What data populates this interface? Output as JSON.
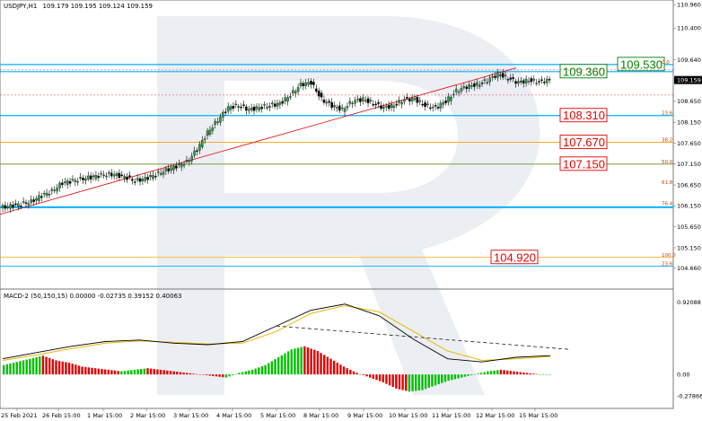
{
  "header": {
    "symbol": "USDJPY,H1",
    "ohlc": "109.179 109.195 109.124 109.159",
    "macd_label": "MACD-2 (50,150,15) 0.00000 -0.02735 0.39152 0.40063"
  },
  "chart_data": [
    {
      "type": "candlestick",
      "title": "USDJPY,H1",
      "ylim": [
        104.25,
        110.9
      ],
      "y_ticks": [
        "110.960",
        "110.400",
        "109.640",
        "109.159",
        "108.650",
        "108.150",
        "107.650",
        "107.150",
        "106.650",
        "106.150",
        "105.650",
        "105.150",
        "104.660"
      ],
      "x_ticks": [
        "25 Feb 2021",
        "26 Feb 15:00",
        "1 Mar 15:00",
        "2 Mar 15:00",
        "3 Mar 15:00",
        "4 Mar 15:00",
        "5 Mar 15:00",
        "8 Mar 15:00",
        "9 Mar 15:00",
        "10 Mar 15:00",
        "11 Mar 15:00",
        "12 Mar 15:00",
        "15 Mar 15:00"
      ],
      "price_path": [
        [
          0,
          106.1
        ],
        [
          4,
          106.15
        ],
        [
          8,
          106.2
        ],
        [
          12,
          106.25
        ],
        [
          16,
          106.4
        ],
        [
          20,
          106.5
        ],
        [
          24,
          106.7
        ],
        [
          28,
          106.75
        ],
        [
          32,
          106.8
        ],
        [
          36,
          106.85
        ],
        [
          40,
          106.9
        ],
        [
          44,
          106.9
        ],
        [
          48,
          106.85
        ],
        [
          52,
          106.75
        ],
        [
          56,
          106.8
        ],
        [
          60,
          106.9
        ],
        [
          64,
          107.0
        ],
        [
          68,
          107.1
        ],
        [
          72,
          107.2
        ],
        [
          76,
          107.5
        ],
        [
          80,
          107.9
        ],
        [
          84,
          108.2
        ],
        [
          88,
          108.5
        ],
        [
          92,
          108.55
        ],
        [
          96,
          108.45
        ],
        [
          100,
          108.5
        ],
        [
          104,
          108.55
        ],
        [
          108,
          108.6
        ],
        [
          112,
          108.8
        ],
        [
          116,
          109.05
        ],
        [
          120,
          109.1
        ],
        [
          124,
          108.7
        ],
        [
          128,
          108.55
        ],
        [
          132,
          108.45
        ],
        [
          136,
          108.65
        ],
        [
          140,
          108.7
        ],
        [
          144,
          108.6
        ],
        [
          148,
          108.5
        ],
        [
          152,
          108.55
        ],
        [
          156,
          108.7
        ],
        [
          160,
          108.7
        ],
        [
          164,
          108.55
        ],
        [
          168,
          108.5
        ],
        [
          172,
          108.65
        ],
        [
          176,
          108.9
        ],
        [
          180,
          109.0
        ],
        [
          184,
          109.05
        ],
        [
          188,
          109.15
        ],
        [
          192,
          109.3
        ],
        [
          196,
          109.2
        ],
        [
          200,
          109.1
        ],
        [
          204,
          109.15
        ],
        [
          208,
          109.12
        ],
        [
          212,
          109.16
        ]
      ],
      "current_price": "109.159",
      "levels": [
        {
          "label": "109.530",
          "price": 109.53,
          "color": "#00b0ff",
          "text_color": "#008000"
        },
        {
          "label": "109.360",
          "price": 109.36,
          "color": "#00b0ff",
          "text_color": "#008000"
        },
        {
          "label": "108.310",
          "price": 108.31,
          "color": "#00b0ff",
          "text_color": "#e00000"
        },
        {
          "label": "107.670",
          "price": 107.67,
          "color": "#ffa000",
          "text_color": "#e00000"
        },
        {
          "label": "107.150",
          "price": 107.15,
          "color": "#6b8e23",
          "text_color": "#e00000"
        },
        {
          "label": "104.920",
          "price": 104.92,
          "color": "#ffa000",
          "text_color": "#e00000"
        }
      ],
      "fibo_labels": [
        "23.6",
        "38.2",
        "50.0",
        "61.8",
        "76.4",
        "100.0",
        "23.6",
        "0.0"
      ],
      "colors": {
        "bull": "#2ea043",
        "bear": "#e00000",
        "trend": "#e00000"
      }
    },
    {
      "type": "macd",
      "title": "MACD-2 (50,150,15)",
      "values": [
        "0.00000",
        "-0.02735",
        "0.39152",
        "0.40063"
      ],
      "ylim": [
        -0.4,
        1.0
      ],
      "y_ticks": [
        "0.92088",
        "0.00",
        "-0.27866"
      ],
      "histogram": [
        0.12,
        0.16,
        0.2,
        0.24,
        0.18,
        0.15,
        0.1,
        0.08,
        0.06,
        0.04,
        0.06,
        0.08,
        0.06,
        0.04,
        0.02,
        0.0,
        -0.02,
        -0.04,
        0.02,
        0.06,
        0.12,
        0.22,
        0.32,
        0.36,
        0.3,
        0.2,
        0.1,
        0.02,
        -0.04,
        -0.1,
        -0.18,
        -0.22,
        -0.2,
        -0.14,
        -0.08,
        -0.04,
        0.0,
        0.04,
        0.06,
        0.04,
        0.02,
        0.0
      ],
      "main_line": [
        0.2,
        0.28,
        0.36,
        0.42,
        0.44,
        0.4,
        0.38,
        0.42,
        0.62,
        0.82,
        0.9,
        0.75,
        0.45,
        0.2,
        0.16,
        0.22,
        0.24
      ],
      "signal_line": [
        0.18,
        0.25,
        0.33,
        0.4,
        0.43,
        0.41,
        0.39,
        0.4,
        0.55,
        0.78,
        0.88,
        0.8,
        0.55,
        0.3,
        0.18,
        0.2,
        0.23
      ]
    }
  ]
}
